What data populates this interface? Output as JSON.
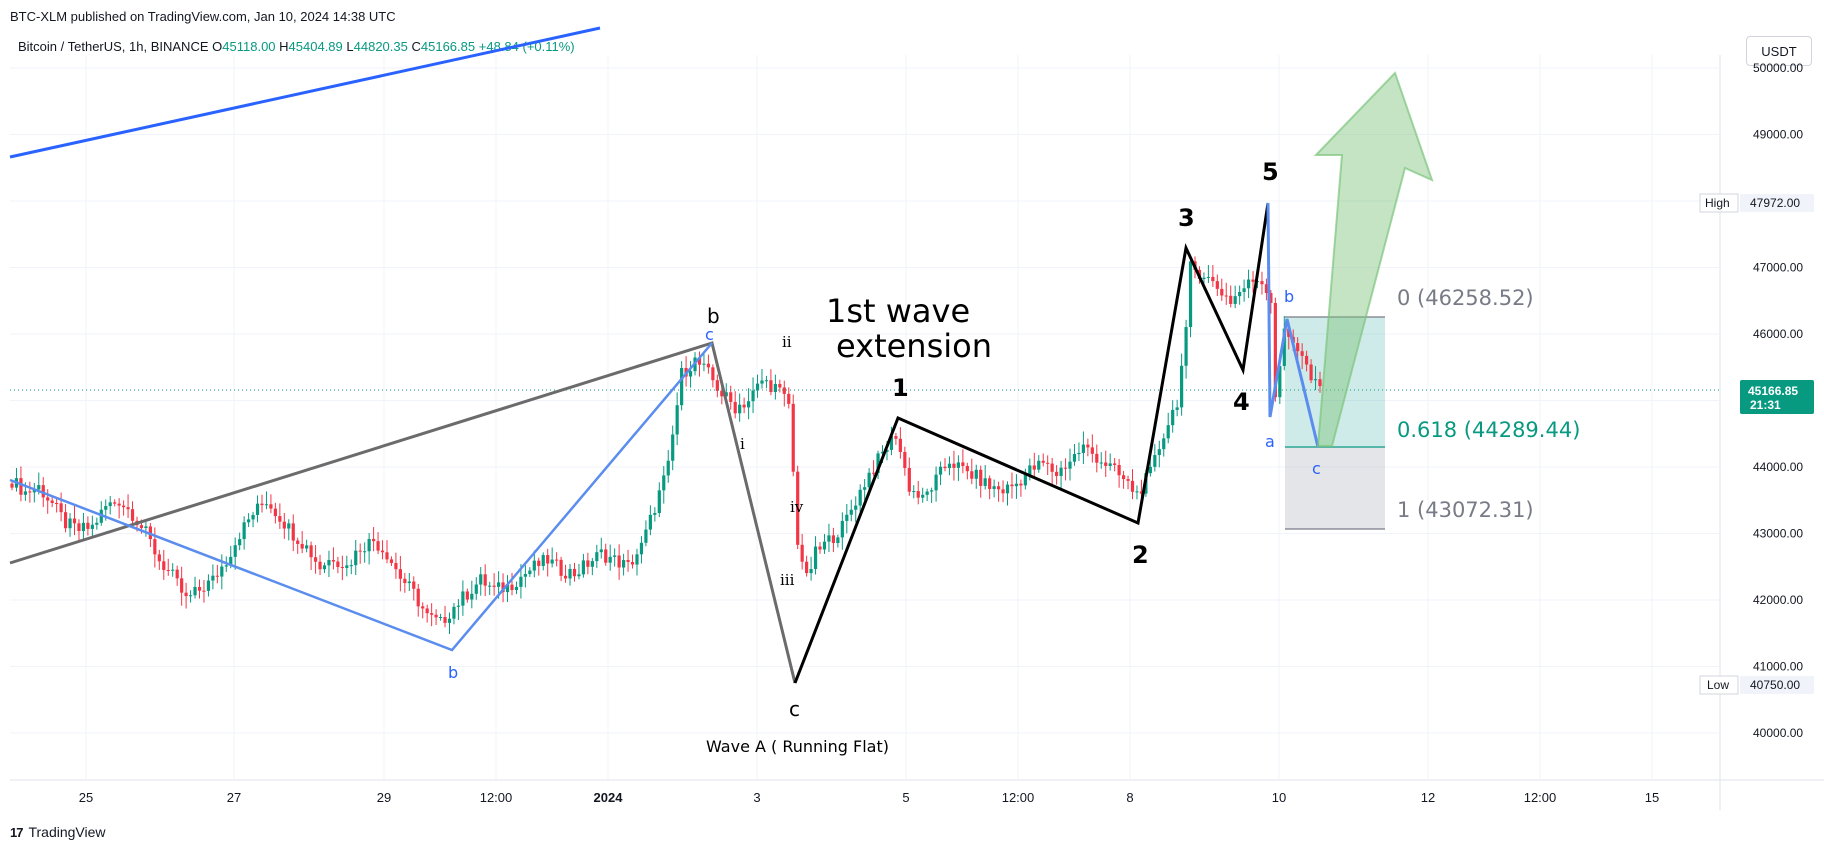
{
  "header": {
    "published": "BTC-XLM published on TradingView.com, Jan 10, 2024 14:38 UTC",
    "symbol": "Bitcoin / TetherUS, 1h, BINANCE",
    "o_label": "O",
    "o_value": "45118.00",
    "h_label": "H",
    "h_value": "45404.89",
    "l_label": "L",
    "l_value": "44820.35",
    "c_label": "C",
    "c_value": "45166.85",
    "change": "+48.84 (+0.11%)"
  },
  "currency": "USDT",
  "footer": {
    "logo_mark": "17",
    "brand": "TradingView"
  },
  "colors": {
    "up": "#089981",
    "down": "#f23645",
    "blue_line": "#2962ff",
    "wave_blue": "#5b8def",
    "wave_gray": "#6b6b6b",
    "wave_black": "#000000",
    "fib_green": "#26a69a",
    "fib_gray": "#787b86"
  },
  "chart_data": {
    "type": "candlestick",
    "interval": "1h",
    "ylim": [
      39500,
      50400
    ],
    "y_ticks": [
      "40000.00",
      "41000.00",
      "42000.00",
      "43000.00",
      "44000.00",
      "45000.00",
      "46000.00",
      "47000.00",
      "48000.00",
      "49000.00",
      "50000.00"
    ],
    "x_ticks": [
      "25",
      "27",
      "29",
      "12:00",
      "2024",
      "3",
      "5",
      "12:00",
      "8",
      "10",
      "12",
      "12:00",
      "15"
    ],
    "last_price": "45166.85",
    "last_price_timer": "21:31",
    "high_label": "High",
    "high_value": "47972.00",
    "low_label": "Low",
    "low_value": "40750.00",
    "close_path": [
      [
        0,
        43800
      ],
      [
        3,
        43620
      ],
      [
        6,
        43700
      ],
      [
        9,
        43450
      ],
      [
        12,
        43150
      ],
      [
        15,
        43050
      ],
      [
        18,
        43100
      ],
      [
        21,
        43400
      ],
      [
        24,
        43500
      ],
      [
        27,
        43300
      ],
      [
        30,
        43000
      ],
      [
        33,
        42600
      ],
      [
        36,
        42350
      ],
      [
        39,
        42000
      ],
      [
        42,
        42150
      ],
      [
        45,
        42300
      ],
      [
        48,
        42600
      ],
      [
        51,
        43000
      ],
      [
        54,
        43300
      ],
      [
        57,
        43500
      ],
      [
        60,
        43250
      ],
      [
        63,
        43000
      ],
      [
        66,
        42800
      ],
      [
        69,
        42500
      ],
      [
        72,
        42650
      ],
      [
        75,
        42500
      ],
      [
        78,
        42800
      ],
      [
        81,
        42900
      ],
      [
        84,
        42700
      ],
      [
        87,
        42350
      ],
      [
        90,
        42100
      ],
      [
        93,
        41750
      ],
      [
        96,
        41650
      ],
      [
        99,
        41900
      ],
      [
        102,
        42100
      ],
      [
        105,
        42300
      ],
      [
        108,
        42150
      ],
      [
        111,
        42200
      ],
      [
        114,
        42350
      ],
      [
        117,
        42500
      ],
      [
        120,
        42600
      ],
      [
        123,
        42450
      ],
      [
        126,
        42400
      ],
      [
        129,
        42550
      ],
      [
        132,
        42700
      ],
      [
        135,
        42600
      ],
      [
        138,
        42500
      ],
      [
        141,
        42800
      ],
      [
        144,
        43400
      ],
      [
        147,
        44000
      ],
      [
        150,
        45400
      ],
      [
        153,
        45600
      ],
      [
        156,
        45400
      ],
      [
        159,
        45100
      ],
      [
        162,
        44900
      ],
      [
        165,
        45000
      ],
      [
        168,
        45300
      ],
      [
        171,
        45200
      ],
      [
        174,
        44950
      ],
      [
        175,
        43900
      ],
      [
        176,
        42900
      ],
      [
        178,
        42300
      ],
      [
        180,
        42700
      ],
      [
        183,
        42900
      ],
      [
        186,
        43100
      ],
      [
        189,
        43500
      ],
      [
        192,
        43900
      ],
      [
        195,
        44200
      ],
      [
        198,
        44500
      ],
      [
        201,
        43700
      ],
      [
        204,
        43500
      ],
      [
        207,
        43800
      ],
      [
        210,
        44100
      ],
      [
        213,
        43950
      ],
      [
        216,
        43850
      ],
      [
        219,
        43700
      ],
      [
        222,
        43650
      ],
      [
        225,
        43750
      ],
      [
        228,
        43950
      ],
      [
        231,
        44050
      ],
      [
        234,
        43900
      ],
      [
        237,
        44100
      ],
      [
        240,
        44300
      ],
      [
        243,
        44150
      ],
      [
        246,
        44000
      ],
      [
        249,
        43800
      ],
      [
        252,
        43600
      ],
      [
        255,
        43900
      ],
      [
        258,
        44500
      ],
      [
        261,
        45000
      ],
      [
        263,
        46000
      ],
      [
        264,
        47000
      ],
      [
        267,
        46900
      ],
      [
        270,
        46700
      ],
      [
        273,
        46500
      ],
      [
        276,
        46700
      ],
      [
        279,
        46850
      ],
      [
        281,
        46700
      ],
      [
        282,
        46500
      ],
      [
        283,
        45100
      ],
      [
        285,
        46000
      ],
      [
        287,
        45900
      ],
      [
        289,
        45700
      ],
      [
        291,
        45300
      ],
      [
        293,
        45166
      ]
    ],
    "annotations": [
      {
        "text": "1st wave",
        "kind": "title"
      },
      {
        "text": "extension",
        "kind": "title"
      },
      {
        "text": "Wave A ( Running Flat)",
        "kind": "caption"
      },
      {
        "text": "b",
        "kind": "gray-label"
      },
      {
        "text": "c",
        "kind": "blue-label"
      },
      {
        "text": "b",
        "kind": "blue-label"
      },
      {
        "text": "c",
        "kind": "gray-label"
      },
      {
        "text": "i",
        "kind": "small"
      },
      {
        "text": "ii",
        "kind": "small"
      },
      {
        "text": "iii",
        "kind": "small"
      },
      {
        "text": "iv",
        "kind": "small"
      },
      {
        "text": "1",
        "kind": "wave-num"
      },
      {
        "text": "2",
        "kind": "wave-num"
      },
      {
        "text": "3",
        "kind": "wave-num"
      },
      {
        "text": "4",
        "kind": "wave-num"
      },
      {
        "text": "5",
        "kind": "wave-num"
      },
      {
        "text": "a",
        "kind": "blue-label"
      },
      {
        "text": "b",
        "kind": "blue-label"
      },
      {
        "text": "c",
        "kind": "blue-label"
      }
    ],
    "fib_levels": [
      {
        "ratio": "0",
        "price": 46258.52,
        "label": "0 (46258.52)"
      },
      {
        "ratio": "0.618",
        "price": 44289.44,
        "label": "0.618 (44289.44)"
      },
      {
        "ratio": "1",
        "price": 43072.31,
        "label": "1 (43072.31)"
      }
    ]
  }
}
